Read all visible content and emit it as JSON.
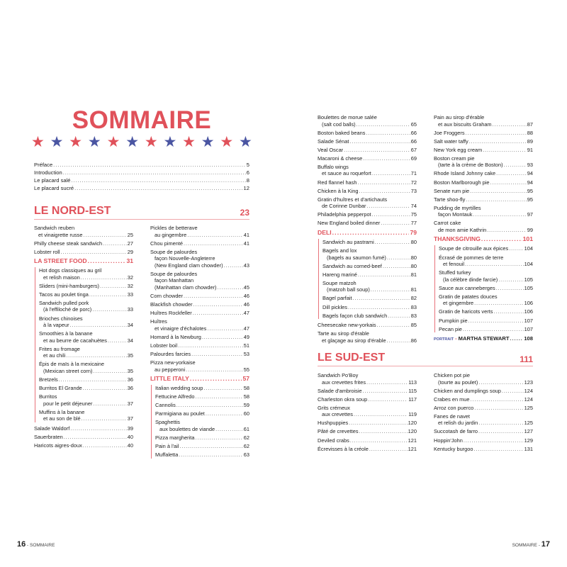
{
  "colors": {
    "red": "#e0515a",
    "blue": "#4a55a2"
  },
  "left_page": {
    "title": "SOMMAIRE",
    "stars": [
      "red",
      "blue",
      "red",
      "blue",
      "red",
      "blue",
      "red",
      "blue",
      "red",
      "blue",
      "red",
      "blue"
    ],
    "intro": [
      {
        "label": "Préface",
        "page": "5"
      },
      {
        "label": "Introduction",
        "page": "6"
      },
      {
        "label": "Le placard salé",
        "page": "8"
      },
      {
        "label": "Le placard sucré",
        "page": "12"
      }
    ],
    "region": {
      "name": "LE NORD-EST",
      "page": "23"
    },
    "footer": {
      "number": "16",
      "label": "SOMMAIRE"
    }
  },
  "right_page": {
    "region": {
      "name": "LE SUD-EST",
      "page": "111"
    },
    "footer": {
      "number": "17",
      "label": "SOMMAIRE"
    }
  },
  "columns": [
    [
      {
        "lines": [
          "Sandwich reuben",
          "et vinaigrette russe"
        ],
        "page": "25"
      },
      {
        "lines": [
          "Philly cheese steak sandwich"
        ],
        "page": "27"
      },
      {
        "lines": [
          "Lobster roll"
        ],
        "page": "29"
      },
      {
        "section": "LA STREET FOOD",
        "page": "31",
        "items": [
          {
            "lines": [
              "Hot dogs classiques au gril",
              "et relish maison"
            ],
            "page": "32"
          },
          {
            "lines": [
              "Sliders (mini-hamburgers)"
            ],
            "page": "32"
          },
          {
            "lines": [
              "Tacos au poulet tinga"
            ],
            "page": "33"
          },
          {
            "lines": [
              "Sandwich pulled pork",
              "(à l'effiloché de porc)"
            ],
            "page": "33"
          },
          {
            "lines": [
              "Brioches chinoises",
              "à la vapeur"
            ],
            "page": "34"
          },
          {
            "lines": [
              "Smoothies à la banane",
              "et au beurre de cacahuètes"
            ],
            "page": "34"
          },
          {
            "lines": [
              "Frites au fromage",
              "et au chili"
            ],
            "page": "35"
          },
          {
            "lines": [
              "Épis de maïs à la mexicaine",
              "(Mexican street corn)"
            ],
            "page": "35"
          },
          {
            "lines": [
              "Bretzels"
            ],
            "page": "36"
          },
          {
            "lines": [
              "Burritos El Grande"
            ],
            "page": "36"
          },
          {
            "lines": [
              "Burritos",
              "pour le petit déjeuner"
            ],
            "page": "37"
          },
          {
            "lines": [
              "Muffins à la banane",
              "et au son de blé"
            ],
            "page": "37"
          }
        ]
      },
      {
        "lines": [
          "Salade Waldorf"
        ],
        "page": "39"
      },
      {
        "lines": [
          "Sauerbraten"
        ],
        "page": "40"
      },
      {
        "lines": [
          "Haricots aigres-doux"
        ],
        "page": "40"
      }
    ],
    [
      {
        "lines": [
          "Pickles de betterave",
          "au gingembre"
        ],
        "page": "41"
      },
      {
        "lines": [
          "Chou pimenté"
        ],
        "page": "41"
      },
      {
        "lines": [
          "Soupe de palourdes",
          "façon Nouvelle-Angleterre",
          "(New England clam chowder)"
        ],
        "page": "43"
      },
      {
        "lines": [
          "Soupe de palourdes",
          "façon Manhattan",
          "(Manhattan clam chowder)"
        ],
        "page": "45"
      },
      {
        "lines": [
          "Corn chowder"
        ],
        "page": "46"
      },
      {
        "lines": [
          "Blackfish chowder"
        ],
        "page": "46"
      },
      {
        "lines": [
          "Huîtres Rockfeller"
        ],
        "page": "47"
      },
      {
        "lines": [
          "Huîtres",
          "et vinaigre d'échalotes"
        ],
        "page": "47"
      },
      {
        "lines": [
          "Homard à la Newburg"
        ],
        "page": "49"
      },
      {
        "lines": [
          "Lobster boil"
        ],
        "page": "51"
      },
      {
        "lines": [
          "Palourdes farcies"
        ],
        "page": "53"
      },
      {
        "lines": [
          "Pizza new-yorkaise",
          "au pepperoni"
        ],
        "page": "55"
      },
      {
        "section": "LITTLE ITALY",
        "page": "57",
        "items": [
          {
            "lines": [
              "Italian wedding soup"
            ],
            "page": "58"
          },
          {
            "lines": [
              "Fettucine Alfredo"
            ],
            "page": "58"
          },
          {
            "lines": [
              "Cannolis"
            ],
            "page": "59"
          },
          {
            "lines": [
              "Parmigiana au poulet"
            ],
            "page": "60"
          },
          {
            "lines": [
              "Spaghettis",
              "aux boulettes de viande"
            ],
            "page": "61"
          },
          {
            "lines": [
              "Pizza margherita"
            ],
            "page": "62"
          },
          {
            "lines": [
              "Pain à l'ail"
            ],
            "page": "62"
          },
          {
            "lines": [
              "Muffaletta"
            ],
            "page": "63"
          }
        ]
      }
    ],
    [
      {
        "lines": [
          "Boulettes de morue salée",
          "(salt cod balls)"
        ],
        "page": "65"
      },
      {
        "lines": [
          "Boston baked beans"
        ],
        "page": "66"
      },
      {
        "lines": [
          "Salade Sénat"
        ],
        "page": "66"
      },
      {
        "lines": [
          "Veal Oscar"
        ],
        "page": "67"
      },
      {
        "lines": [
          "Macaroni & cheese"
        ],
        "page": "69"
      },
      {
        "lines": [
          "Buffalo wings",
          "et sauce au roquefort"
        ],
        "page": "71"
      },
      {
        "lines": [
          "Red flannel hash"
        ],
        "page": "72"
      },
      {
        "lines": [
          "Chicken à la King"
        ],
        "page": "73"
      },
      {
        "lines": [
          "Gratin d'huîtres et d'artichauts",
          "de Corinne Dunbar"
        ],
        "page": "74"
      },
      {
        "lines": [
          "Philadelphia pepperpot"
        ],
        "page": "75"
      },
      {
        "lines": [
          "New England boiled dinner"
        ],
        "page": "77"
      },
      {
        "section": "DELI",
        "page": "79",
        "items": [
          {
            "lines": [
              "Sandwich au pastrami"
            ],
            "page": "80"
          },
          {
            "lines": [
              "Bagels and lox",
              "(bagels au saumon fumé)"
            ],
            "page": "80"
          },
          {
            "lines": [
              "Sandwich au corned-beef"
            ],
            "page": "80"
          },
          {
            "lines": [
              "Hareng mariné"
            ],
            "page": "81"
          },
          {
            "lines": [
              "Soupe matzoh",
              "(matzoh ball soup)"
            ],
            "page": "81"
          },
          {
            "lines": [
              "Bagel parfait"
            ],
            "page": "82"
          },
          {
            "lines": [
              "Dill pickles"
            ],
            "page": "83"
          },
          {
            "lines": [
              "Bagels façon club sandwich"
            ],
            "page": "83"
          }
        ]
      },
      {
        "lines": [
          "Cheesecake new-yorkais"
        ],
        "page": "85"
      },
      {
        "lines": [
          "Tarte au sirop d'érable",
          "et glaçage au sirop d'érable"
        ],
        "page": "86"
      }
    ],
    [
      {
        "lines": [
          "Pain au sirop d'érable",
          "et aux biscuits Graham"
        ],
        "page": "87"
      },
      {
        "lines": [
          "Joe Froggers"
        ],
        "page": "88"
      },
      {
        "lines": [
          "Salt water taffy"
        ],
        "page": "89"
      },
      {
        "lines": [
          "New York egg cream"
        ],
        "page": "91"
      },
      {
        "lines": [
          "Boston cream pie",
          "(tarte à la crème de Boston)"
        ],
        "page": "93"
      },
      {
        "lines": [
          "Rhode Island Johnny cake"
        ],
        "page": "94"
      },
      {
        "lines": [
          "Boston Marlborough pie"
        ],
        "page": "94"
      },
      {
        "lines": [
          "Senate rum pie"
        ],
        "page": "95"
      },
      {
        "lines": [
          "Tarte shoo-fly"
        ],
        "page": "95"
      },
      {
        "lines": [
          "Pudding de myrtilles",
          "façon Montauk"
        ],
        "page": "97"
      },
      {
        "lines": [
          "Carrot cake",
          "de mon amie Kathrin"
        ],
        "page": "99"
      },
      {
        "section": "THANKSGIVING",
        "page": "101",
        "items": [
          {
            "lines": [
              "Soupe de citrouille aux épices"
            ],
            "page": "104"
          },
          {
            "lines": [
              "Écrasé de pommes de terre",
              "et fenouil"
            ],
            "page": "104"
          },
          {
            "lines": [
              "Stuffed turkey",
              "(la célèbre dinde farcie)"
            ],
            "page": "105"
          },
          {
            "lines": [
              "Sauce aux canneberges"
            ],
            "page": "105"
          },
          {
            "lines": [
              "Gratin de patates douces",
              "et gingembre"
            ],
            "page": "106"
          },
          {
            "lines": [
              "Gratin de haricots verts"
            ],
            "page": "106"
          },
          {
            "lines": [
              "Pumpkin pie"
            ],
            "page": "107"
          },
          {
            "lines": [
              "Pecan pie"
            ],
            "page": "107"
          }
        ]
      },
      {
        "portrait": "PORTRAIT",
        "name": "MARTHA STEWART",
        "page": "108"
      }
    ],
    [
      {
        "lines": [
          "Sandwich Po'Boy",
          "aux crevettes frites"
        ],
        "page": "113"
      },
      {
        "lines": [
          "Salade d'ambroisie"
        ],
        "page": "115"
      },
      {
        "lines": [
          "Charleston okra soup"
        ],
        "page": "117"
      },
      {
        "lines": [
          "Grits crémeux",
          "aux crevettes"
        ],
        "page": "119"
      },
      {
        "lines": [
          "Hushpuppies"
        ],
        "page": "120"
      },
      {
        "lines": [
          "Pâté de crevettes"
        ],
        "page": "120"
      },
      {
        "lines": [
          "Deviled crabs"
        ],
        "page": "121"
      },
      {
        "lines": [
          "Écrevisses à la créole"
        ],
        "page": "121"
      }
    ],
    [
      {
        "lines": [
          "Chicken pot pie",
          "(tourte au poulet)"
        ],
        "page": "123"
      },
      {
        "lines": [
          "Chicken and dumplings soup"
        ],
        "page": "124"
      },
      {
        "lines": [
          "Crabes en mue"
        ],
        "page": "124"
      },
      {
        "lines": [
          "Arroz con puerco"
        ],
        "page": "125"
      },
      {
        "lines": [
          "Fanes de navet",
          "et relish du jardin"
        ],
        "page": "125"
      },
      {
        "lines": [
          "Succotash de farro"
        ],
        "page": "127"
      },
      {
        "lines": [
          "Hoppin'John"
        ],
        "page": "129"
      },
      {
        "lines": [
          "Kentucky burgoo"
        ],
        "page": "131"
      }
    ]
  ]
}
